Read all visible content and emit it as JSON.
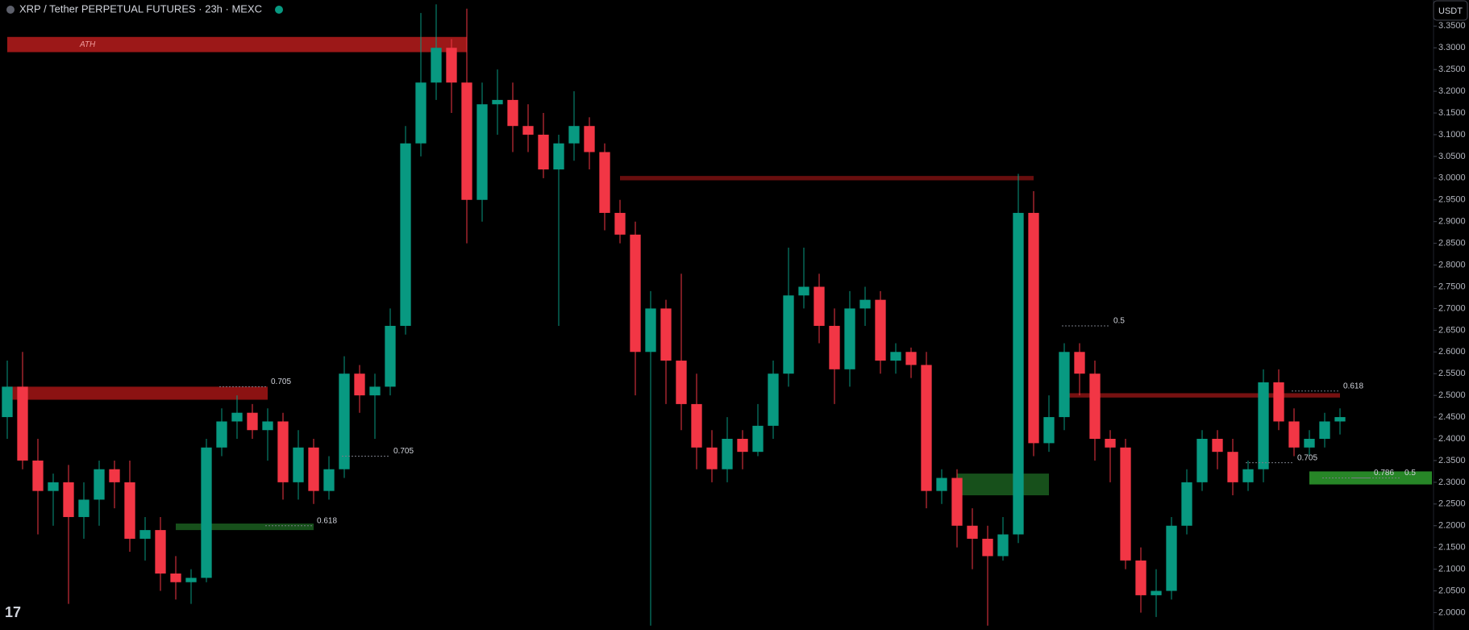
{
  "chart_data": {
    "type": "candlestick",
    "title": "XRP / Tether PERPETUAL FUTURES · 23h · MEXC",
    "currency": "USDT",
    "up_color": "#089981",
    "down_color": "#f23645",
    "ylim": [
      1.96,
      3.41
    ],
    "yticks": [
      {
        "value": 2.0,
        "label": "2.0000"
      },
      {
        "value": 2.05,
        "label": "2.0500"
      },
      {
        "value": 2.1,
        "label": "2.1000"
      },
      {
        "value": 2.15,
        "label": "2.1500"
      },
      {
        "value": 2.2,
        "label": "2.2000"
      },
      {
        "value": 2.25,
        "label": "2.2500"
      },
      {
        "value": 2.3,
        "label": "2.3000"
      },
      {
        "value": 2.35,
        "label": "2.3500"
      },
      {
        "value": 2.4,
        "label": "2.4000"
      },
      {
        "value": 2.45,
        "label": "2.4500"
      },
      {
        "value": 2.5,
        "label": "2.5000"
      },
      {
        "value": 2.55,
        "label": "2.5500"
      },
      {
        "value": 2.6,
        "label": "2.6000"
      },
      {
        "value": 2.65,
        "label": "2.6500"
      },
      {
        "value": 2.7,
        "label": "2.7000"
      },
      {
        "value": 2.75,
        "label": "2.7500"
      },
      {
        "value": 2.8,
        "label": "2.8000"
      },
      {
        "value": 2.85,
        "label": "2.8500"
      },
      {
        "value": 2.9,
        "label": "2.9000"
      },
      {
        "value": 2.95,
        "label": "2.9500"
      },
      {
        "value": 3.0,
        "label": "3.0000"
      },
      {
        "value": 3.05,
        "label": "3.0500"
      },
      {
        "value": 3.1,
        "label": "3.1000"
      },
      {
        "value": 3.15,
        "label": "3.1500"
      },
      {
        "value": 3.2,
        "label": "3.2000"
      },
      {
        "value": 3.25,
        "label": "3.2500"
      },
      {
        "value": 3.3,
        "label": "3.3000"
      },
      {
        "value": 3.35,
        "label": "3.3500"
      }
    ],
    "candles": [
      [
        2.45,
        2.58,
        2.4,
        2.52
      ],
      [
        2.52,
        2.6,
        2.33,
        2.35
      ],
      [
        2.35,
        2.4,
        2.18,
        2.28
      ],
      [
        2.28,
        2.32,
        2.2,
        2.3
      ],
      [
        2.3,
        2.34,
        2.02,
        2.22
      ],
      [
        2.22,
        2.3,
        2.17,
        2.26
      ],
      [
        2.26,
        2.35,
        2.2,
        2.33
      ],
      [
        2.33,
        2.35,
        2.24,
        2.3
      ],
      [
        2.3,
        2.35,
        2.14,
        2.17
      ],
      [
        2.17,
        2.22,
        2.12,
        2.19
      ],
      [
        2.19,
        2.22,
        2.05,
        2.09
      ],
      [
        2.09,
        2.13,
        2.03,
        2.07
      ],
      [
        2.07,
        2.1,
        2.02,
        2.08
      ],
      [
        2.08,
        2.4,
        2.07,
        2.38
      ],
      [
        2.38,
        2.47,
        2.36,
        2.44
      ],
      [
        2.44,
        2.5,
        2.4,
        2.46
      ],
      [
        2.46,
        2.48,
        2.4,
        2.42
      ],
      [
        2.42,
        2.47,
        2.35,
        2.44
      ],
      [
        2.44,
        2.46,
        2.26,
        2.3
      ],
      [
        2.3,
        2.42,
        2.26,
        2.38
      ],
      [
        2.38,
        2.4,
        2.25,
        2.28
      ],
      [
        2.28,
        2.36,
        2.26,
        2.33
      ],
      [
        2.33,
        2.59,
        2.31,
        2.55
      ],
      [
        2.55,
        2.57,
        2.46,
        2.5
      ],
      [
        2.5,
        2.55,
        2.4,
        2.52
      ],
      [
        2.52,
        2.7,
        2.5,
        2.66
      ],
      [
        2.66,
        3.12,
        2.64,
        3.08
      ],
      [
        3.08,
        3.38,
        3.05,
        3.22
      ],
      [
        3.22,
        3.4,
        3.18,
        3.3
      ],
      [
        3.3,
        3.32,
        3.15,
        3.22
      ],
      [
        3.22,
        3.39,
        2.85,
        2.95
      ],
      [
        2.95,
        3.22,
        2.9,
        3.17
      ],
      [
        3.17,
        3.25,
        3.1,
        3.18
      ],
      [
        3.18,
        3.22,
        3.06,
        3.12
      ],
      [
        3.12,
        3.17,
        3.06,
        3.1
      ],
      [
        3.1,
        3.15,
        3.0,
        3.02
      ],
      [
        3.02,
        3.1,
        2.66,
        3.08
      ],
      [
        3.08,
        3.2,
        3.04,
        3.12
      ],
      [
        3.12,
        3.14,
        3.02,
        3.06
      ],
      [
        3.06,
        3.08,
        2.88,
        2.92
      ],
      [
        2.92,
        2.95,
        2.85,
        2.87
      ],
      [
        2.87,
        2.9,
        2.5,
        2.6
      ],
      [
        2.6,
        2.74,
        1.97,
        2.7
      ],
      [
        2.7,
        2.72,
        2.48,
        2.58
      ],
      [
        2.58,
        2.78,
        2.42,
        2.48
      ],
      [
        2.48,
        2.55,
        2.33,
        2.38
      ],
      [
        2.38,
        2.42,
        2.3,
        2.33
      ],
      [
        2.33,
        2.45,
        2.3,
        2.4
      ],
      [
        2.4,
        2.42,
        2.33,
        2.37
      ],
      [
        2.37,
        2.48,
        2.36,
        2.43
      ],
      [
        2.43,
        2.58,
        2.4,
        2.55
      ],
      [
        2.55,
        2.84,
        2.52,
        2.73
      ],
      [
        2.73,
        2.84,
        2.7,
        2.75
      ],
      [
        2.75,
        2.78,
        2.62,
        2.66
      ],
      [
        2.66,
        2.7,
        2.48,
        2.56
      ],
      [
        2.56,
        2.74,
        2.52,
        2.7
      ],
      [
        2.7,
        2.75,
        2.66,
        2.72
      ],
      [
        2.72,
        2.74,
        2.55,
        2.58
      ],
      [
        2.58,
        2.62,
        2.55,
        2.6
      ],
      [
        2.6,
        2.61,
        2.54,
        2.57
      ],
      [
        2.57,
        2.6,
        2.24,
        2.28
      ],
      [
        2.28,
        2.33,
        2.25,
        2.31
      ],
      [
        2.31,
        2.33,
        2.15,
        2.2
      ],
      [
        2.2,
        2.24,
        2.1,
        2.17
      ],
      [
        2.17,
        2.2,
        1.97,
        2.13
      ],
      [
        2.13,
        2.22,
        2.12,
        2.18
      ],
      [
        2.18,
        3.01,
        2.16,
        2.92
      ],
      [
        2.92,
        2.97,
        2.36,
        2.39
      ],
      [
        2.39,
        2.5,
        2.37,
        2.45
      ],
      [
        2.45,
        2.62,
        2.42,
        2.6
      ],
      [
        2.6,
        2.62,
        2.5,
        2.55
      ],
      [
        2.55,
        2.58,
        2.35,
        2.4
      ],
      [
        2.4,
        2.42,
        2.3,
        2.38
      ],
      [
        2.38,
        2.4,
        2.1,
        2.12
      ],
      [
        2.12,
        2.15,
        2.0,
        2.04
      ],
      [
        2.04,
        2.1,
        1.99,
        2.05
      ],
      [
        2.05,
        2.22,
        2.03,
        2.2
      ],
      [
        2.2,
        2.33,
        2.18,
        2.3
      ],
      [
        2.3,
        2.42,
        2.28,
        2.4
      ],
      [
        2.4,
        2.42,
        2.33,
        2.37
      ],
      [
        2.37,
        2.4,
        2.27,
        2.3
      ],
      [
        2.3,
        2.35,
        2.28,
        2.33
      ],
      [
        2.33,
        2.56,
        2.3,
        2.53
      ],
      [
        2.53,
        2.56,
        2.42,
        2.44
      ],
      [
        2.44,
        2.47,
        2.36,
        2.38
      ],
      [
        2.38,
        2.42,
        2.36,
        2.4
      ],
      [
        2.4,
        2.46,
        2.38,
        2.44
      ],
      [
        2.44,
        2.47,
        2.41,
        2.45
      ]
    ],
    "zones": [
      {
        "label": "ATH",
        "low": 3.29,
        "high": 3.325,
        "from": 0,
        "to": 30,
        "color": "#b71c1c"
      },
      {
        "low": 2.49,
        "high": 2.52,
        "from": 0,
        "to": 17,
        "color": "#a31515"
      },
      {
        "low": 2.19,
        "high": 2.205,
        "from": 11,
        "to": 20,
        "color": "#1b5e20"
      },
      {
        "low": 2.995,
        "high": 3.005,
        "from": 40,
        "to": 67,
        "color": "#7a1010"
      },
      {
        "low": 2.27,
        "high": 2.32,
        "from": 62,
        "to": 68,
        "color": "#1b5e20"
      },
      {
        "low": 2.495,
        "high": 2.505,
        "from": 69,
        "to": 87,
        "color": "#8b1414"
      },
      {
        "low": 2.295,
        "high": 2.325,
        "from": 85,
        "to": 93,
        "color": "#2e9e2e"
      }
    ],
    "levels": [
      {
        "label": "0.705",
        "price": 2.52,
        "at": 17
      },
      {
        "label": "0.618",
        "price": 2.2,
        "at": 20
      },
      {
        "label": "0.705",
        "price": 2.36,
        "at": 25
      },
      {
        "label": "0.5",
        "price": 2.66,
        "at": 72
      },
      {
        "label": "0.618",
        "price": 2.51,
        "at": 87
      },
      {
        "label": "0.705",
        "price": 2.345,
        "at": 84
      },
      {
        "label": "0.786",
        "price": 2.31,
        "at": 89
      },
      {
        "label": "0.5",
        "price": 2.31,
        "at": 91
      }
    ]
  }
}
